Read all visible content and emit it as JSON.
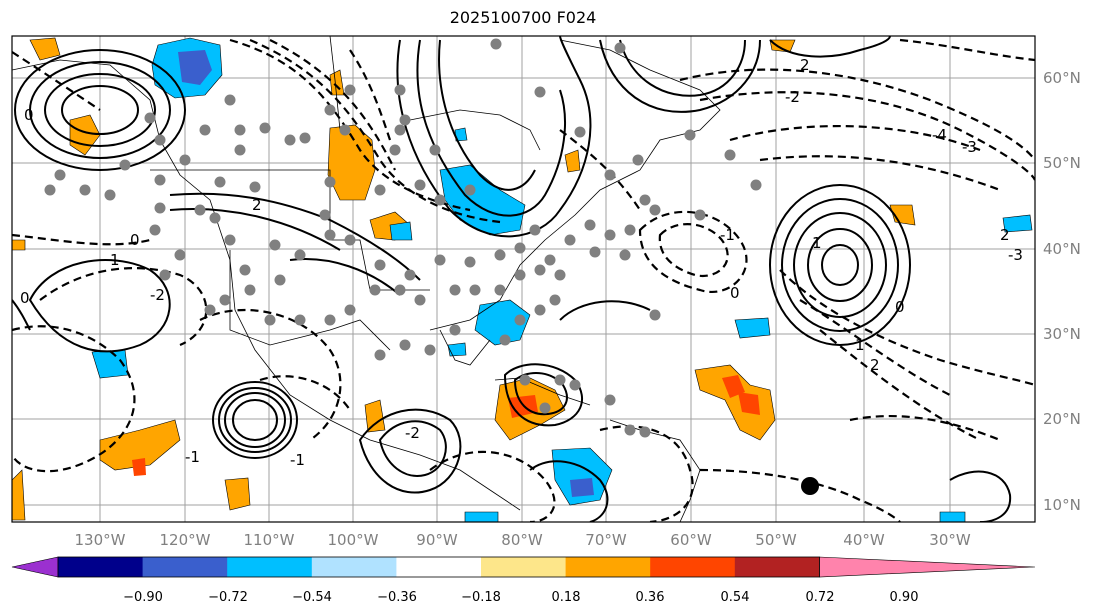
{
  "map": {
    "title": "2025100700 F024",
    "lon_labels": [
      "130°W",
      "120°W",
      "110°W",
      "100°W",
      "90°W",
      "80°W",
      "70°W",
      "60°W",
      "50°W",
      "40°W",
      "30°W"
    ],
    "lat_labels": [
      "60°N",
      "50°N",
      "40°N",
      "30°N",
      "20°N",
      "10°N"
    ],
    "contour_labels": [
      "0",
      "2",
      "-2",
      "-1",
      "1",
      "-3",
      "-4",
      "2",
      "0",
      "1",
      "-1",
      "0",
      "-2",
      "2",
      "0",
      "-1",
      "1",
      "-2",
      "2",
      "-3",
      "0"
    ]
  },
  "colorbar": {
    "ticks": [
      "−0.90",
      "−0.72",
      "−0.54",
      "−0.36",
      "−0.18",
      "0.18",
      "0.36",
      "0.54",
      "0.72",
      "0.90"
    ],
    "colors": [
      "#9b30d0",
      "#00008b",
      "#3a5fcd",
      "#00bfff",
      "#b0e2ff",
      "#ffffff",
      "#fde68a",
      "#ffa500",
      "#ff4500",
      "#b22222",
      "#ff83ac"
    ]
  },
  "colors": {
    "positive_fill": "#ffa500",
    "positive_strong": "#ff4500",
    "negative_fill": "#00bfff",
    "negative_strong": "#3a5fcd",
    "station_dot": "#808080",
    "grid": "#a0a0a0"
  }
}
